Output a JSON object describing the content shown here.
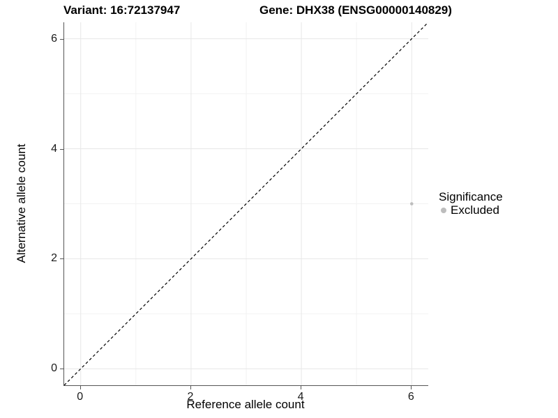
{
  "chart_data": {
    "type": "scatter",
    "title_variant": "Variant: 16:72137947",
    "title_gene": "Gene: DHX38 (ENSG00000140829)",
    "xlabel": "Reference allele count",
    "ylabel": "Alternative allele count",
    "xlim": [
      -0.3,
      6.3
    ],
    "ylim": [
      -0.3,
      6.3
    ],
    "xticks": [
      0,
      2,
      4,
      6
    ],
    "yticks": [
      0,
      2,
      4,
      6
    ],
    "minor_breaks": [
      1,
      3,
      5
    ],
    "grid": true,
    "identity_line": {
      "style": "dashed",
      "from": -0.3,
      "to": 6.3
    },
    "points": [
      {
        "x": 6,
        "y": 3,
        "series": "Excluded"
      }
    ],
    "legend": {
      "title": "Significance",
      "position": "right",
      "items": [
        {
          "label": "Excluded",
          "color": "#bdbdbd"
        }
      ]
    }
  },
  "colors": {
    "background": "#ffffff",
    "axis_line": "#555555",
    "tick_text": "#1a1a1a",
    "title_text": "#000000",
    "grid_major": "#e7e7e7",
    "grid_minor": "#f2f2f2",
    "identity_line": "#000000",
    "point_excluded": "#bdbdbd"
  }
}
